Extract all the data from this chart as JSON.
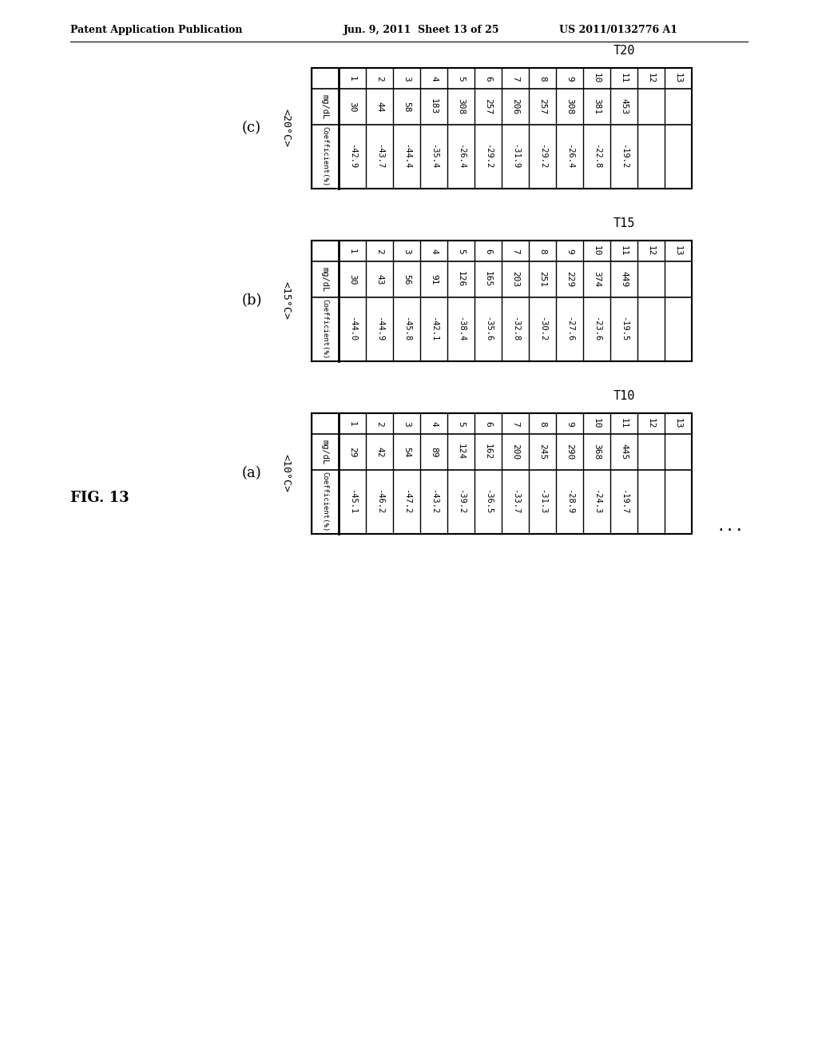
{
  "header_text_left": "Patent Application Publication",
  "header_text_mid": "Jun. 9, 2011  Sheet 13 of 25",
  "header_text_right": "US 2011/0132776 A1",
  "fig_label": "FIG. 13",
  "background_color": "#ffffff",
  "tables": [
    {
      "label": "(a)",
      "temp_label": "<10°C>",
      "t_label": "T10",
      "row_labels": [
        "",
        "mg/dL",
        "Coefficient(%)"
      ],
      "index_row": [
        "1",
        "2",
        "3",
        "4",
        "5",
        "6",
        "7",
        "8",
        "9",
        "10",
        "11",
        "12",
        "13"
      ],
      "mgdl_row": [
        "29",
        "42",
        "54",
        "89",
        "124",
        "162",
        "200",
        "245",
        "290",
        "368",
        "445",
        "",
        ""
      ],
      "coeff_row": [
        "-45.1",
        "-46.2",
        "-47.2",
        "-43.2",
        "-39.2",
        "-36.5",
        "-33.7",
        "-31.3",
        "-28.9",
        "-24.3",
        "-19.7",
        "",
        ""
      ]
    },
    {
      "label": "(b)",
      "temp_label": "<15°C>",
      "t_label": "T15",
      "row_labels": [
        "",
        "mg/dL",
        "Coefficient(%)"
      ],
      "index_row": [
        "1",
        "2",
        "3",
        "4",
        "5",
        "6",
        "7",
        "8",
        "9",
        "10",
        "11",
        "12",
        "13"
      ],
      "mgdl_row": [
        "30",
        "43",
        "56",
        "91",
        "126",
        "165",
        "203",
        "251",
        "229",
        "374",
        "449",
        "",
        ""
      ],
      "coeff_row": [
        "-44.0",
        "-44.9",
        "-45.8",
        "-42.1",
        "-38.4",
        "-35.6",
        "-32.8",
        "-30.2",
        "-27.6",
        "-23.6",
        "-19.5",
        "",
        ""
      ]
    },
    {
      "label": "(c)",
      "temp_label": "<20°C>",
      "t_label": "T20",
      "row_labels": [
        "",
        "mg/dL",
        "Coefficient(%)"
      ],
      "index_row": [
        "1",
        "2",
        "3",
        "4",
        "5",
        "6",
        "7",
        "8",
        "9",
        "10",
        "11",
        "12",
        "13"
      ],
      "mgdl_row": [
        "30",
        "44",
        "58",
        "183",
        "308",
        "257",
        "206",
        "257",
        "308",
        "381",
        "453",
        "",
        ""
      ],
      "coeff_row": [
        "-42.9",
        "-43.7",
        "-44.4",
        "-35.4",
        "-26.4",
        "-29.2",
        "-31.9",
        "-29.2",
        "-26.4",
        "-22.8",
        "-19.2",
        "",
        ""
      ]
    }
  ]
}
